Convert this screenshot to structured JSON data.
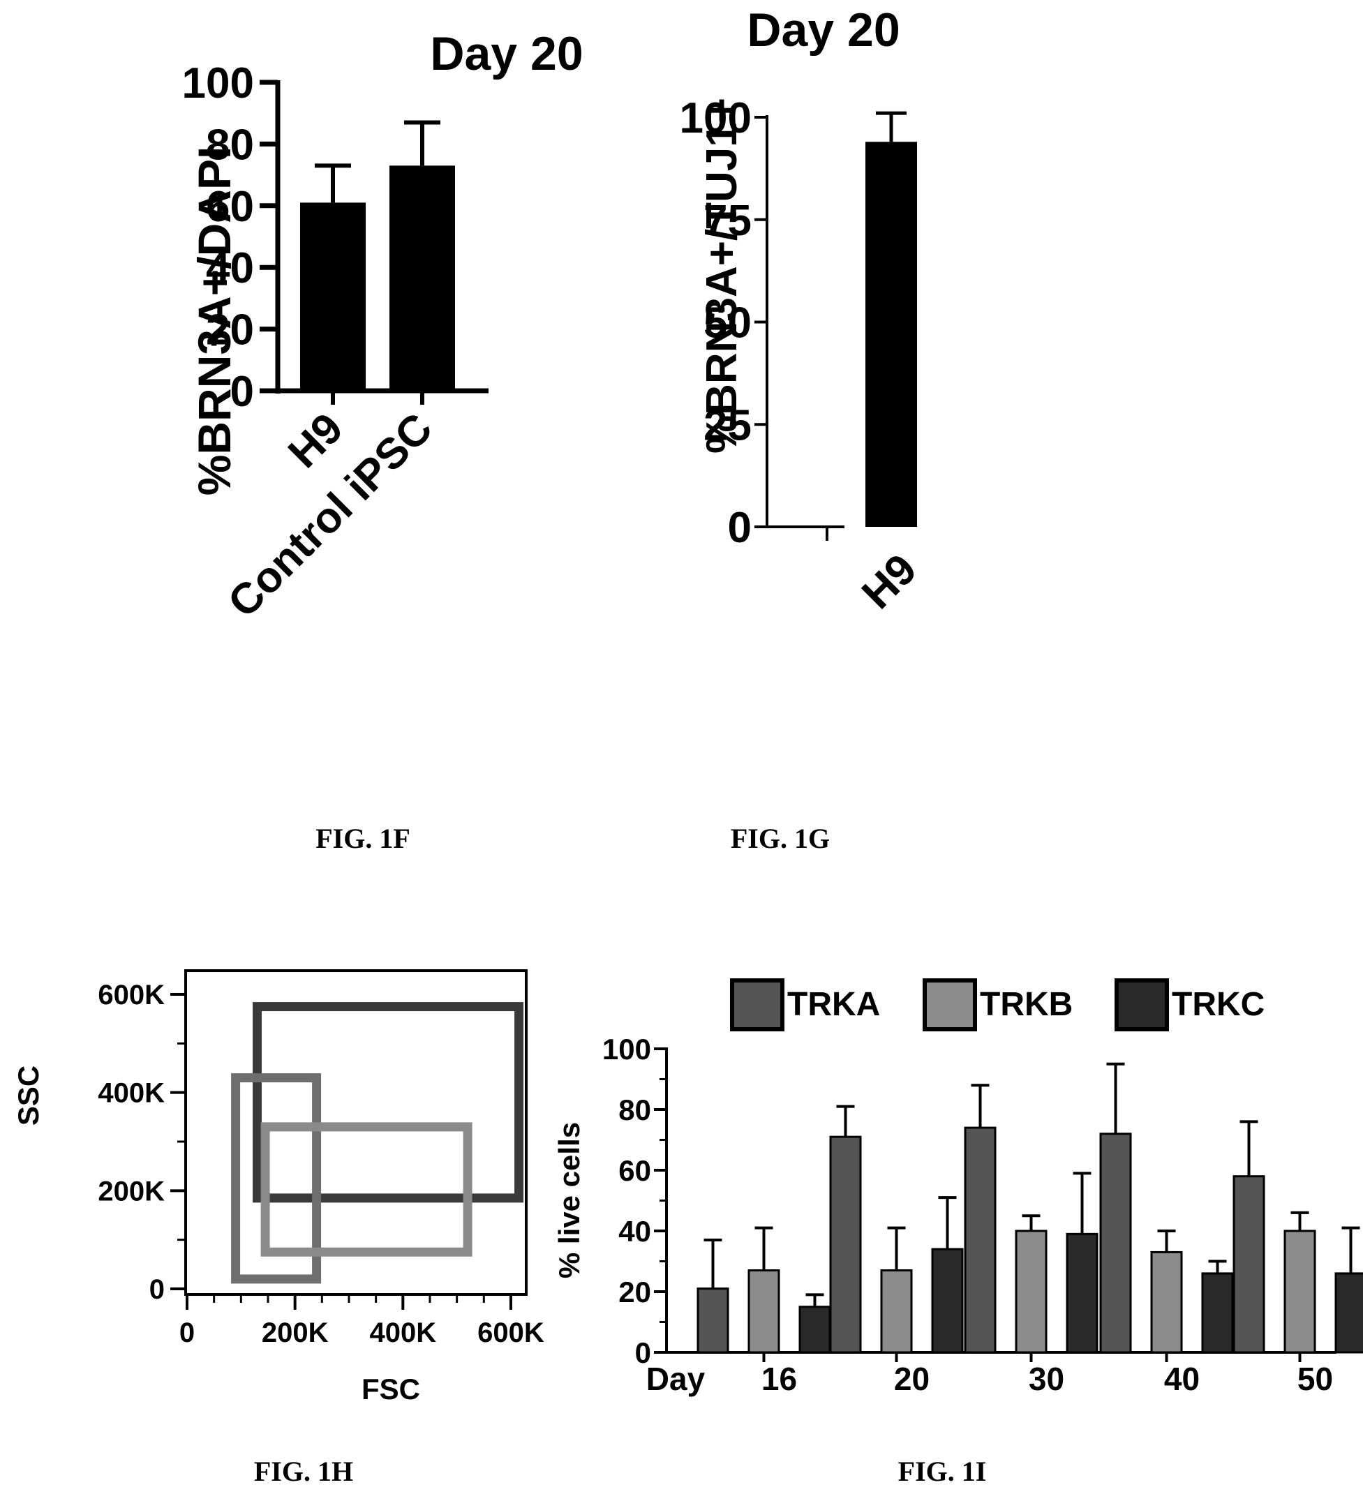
{
  "chart_data": [
    {
      "id": "fig1f",
      "type": "bar",
      "title": "Day 20",
      "ylabel": "%BRN3A+/DAPI",
      "categories": [
        "H9",
        "Control iPSC"
      ],
      "values": [
        61,
        73
      ],
      "errors": [
        12,
        14
      ],
      "ylim": [
        0,
        100
      ],
      "yticks": [
        0,
        20,
        40,
        60,
        80,
        100
      ],
      "caption": "FIG. 1F",
      "color": "#000000"
    },
    {
      "id": "fig1g",
      "type": "bar",
      "title": "Day 20",
      "ylabel": "%BRN3A+/TUJ1+",
      "categories": [
        "H9"
      ],
      "values": [
        94
      ],
      "errors": [
        7
      ],
      "ylim": [
        0,
        100
      ],
      "yticks": [
        0,
        25,
        50,
        75,
        100
      ],
      "caption": "FIG. 1G",
      "color": "#000000"
    },
    {
      "id": "fig1h",
      "type": "scatter",
      "xlabel": "FSC",
      "ylabel": "SSC",
      "xlim": [
        0,
        650000
      ],
      "ylim": [
        0,
        600000
      ],
      "xticks": [
        0,
        200000,
        400000,
        600000
      ],
      "xtick_labels": [
        "0",
        "200K",
        "400K",
        "600K"
      ],
      "yticks": [
        0,
        200000,
        400000,
        600000
      ],
      "ytick_labels": [
        "0",
        "200K",
        "400K",
        "600K"
      ],
      "gates": [
        {
          "x": [
            130000,
            615000
          ],
          "y": [
            185000,
            575000
          ],
          "color": "#3a3a3a"
        },
        {
          "x": [
            90000,
            240000
          ],
          "y": [
            20000,
            430000
          ],
          "color": "#6e6e6e"
        },
        {
          "x": [
            145000,
            520000
          ],
          "y": [
            75000,
            330000
          ],
          "color": "#8a8a8a"
        }
      ],
      "caption": "FIG. 1H"
    },
    {
      "id": "fig1i",
      "type": "bar",
      "ylabel": "% live cells",
      "xlabel": "Day",
      "categories": [
        "16",
        "20",
        "30",
        "40",
        "50"
      ],
      "ylim": [
        0,
        100
      ],
      "yticks": [
        0,
        20,
        40,
        60,
        80,
        100
      ],
      "series": [
        {
          "name": "TRKA",
          "values": [
            21,
            71,
            74,
            72,
            58
          ],
          "errors": [
            16,
            10,
            14,
            23,
            18
          ],
          "color": "#555555"
        },
        {
          "name": "TRKB",
          "values": [
            27,
            27,
            40,
            33,
            40
          ],
          "errors": [
            14,
            14,
            5,
            7,
            6
          ],
          "color": "#8c8c8c"
        },
        {
          "name": "TRKC",
          "values": [
            15,
            34,
            39,
            26,
            26
          ],
          "errors": [
            4,
            17,
            20,
            4,
            15
          ],
          "color": "#2a2a2a"
        }
      ],
      "legend": "top",
      "caption": "FIG. 1I"
    }
  ]
}
